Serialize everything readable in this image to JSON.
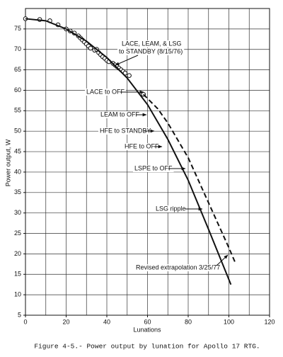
{
  "chart_data": {
    "type": "line",
    "caption": "Figure 4-5.- Power output by lunation for Apollo 17 RTG.",
    "xlabel": "Lunations",
    "ylabel": "Power output, W",
    "xlim": [
      0,
      120
    ],
    "ylim": [
      5,
      80
    ],
    "xticks": [
      0,
      20,
      40,
      60,
      80,
      100,
      120
    ],
    "yticks": [
      5,
      10,
      15,
      20,
      25,
      30,
      35,
      40,
      45,
      50,
      55,
      60,
      65,
      70,
      75
    ],
    "xgrid": [
      0,
      10,
      20,
      30,
      40,
      50,
      60,
      70,
      80,
      90,
      100,
      110,
      120
    ],
    "ygrid": [
      5,
      10,
      15,
      20,
      25,
      30,
      35,
      40,
      45,
      50,
      55,
      60,
      65,
      70,
      75,
      80
    ],
    "grid": true,
    "series": [
      {
        "style": "circles",
        "color": "#111",
        "x": [
          0,
          7,
          12,
          16,
          20,
          22,
          24,
          26,
          27,
          28,
          29,
          30,
          31,
          32,
          34,
          35,
          36,
          37,
          38,
          39,
          40,
          41,
          43,
          44,
          45,
          46,
          47,
          48,
          49,
          51,
          58
        ],
        "values": [
          77.5,
          77.3,
          77,
          76,
          75,
          74.5,
          74,
          73.3,
          72.8,
          72.3,
          71.8,
          71.3,
          70.8,
          70.3,
          69.8,
          70,
          69.2,
          68.7,
          68.2,
          67.8,
          67.3,
          67,
          66.6,
          66.2,
          65.8,
          65.4,
          65,
          64.6,
          64.2,
          63.6,
          59
        ]
      },
      {
        "style": "solid",
        "color": "#111",
        "x": [
          0,
          10,
          20,
          30,
          40,
          50,
          60,
          70,
          80,
          90,
          101
        ],
        "values": [
          77.5,
          77,
          75,
          72,
          68,
          63,
          56.5,
          48,
          38,
          26,
          12.5
        ]
      },
      {
        "style": "dashed",
        "color": "#111",
        "x": [
          58,
          65,
          70,
          80,
          90,
          100,
          103
        ],
        "values": [
          59,
          55.5,
          52,
          43.5,
          32.5,
          21.5,
          18
        ]
      }
    ],
    "annotations": [
      "LACE, LEAM, & LSG",
      "to STANDBY (8/15/76)",
      "LACE to OFF",
      "LEAM to OFF",
      "HFE to STANDBY",
      "HFE to OFF",
      "LSPE to OFF",
      "LSG ripple",
      "Revised extrapolation 3/25/77"
    ]
  }
}
